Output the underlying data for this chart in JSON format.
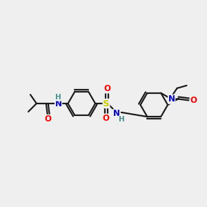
{
  "bg_color": "#efefef",
  "bond_color": "#1a1a1a",
  "atom_colors": {
    "O": "#ff0000",
    "N": "#0000cc",
    "S": "#cccc00",
    "H_N": "#4a9090",
    "C": "#1a1a1a"
  },
  "lw": 1.6,
  "off": 2.8,
  "fs": 8.5
}
